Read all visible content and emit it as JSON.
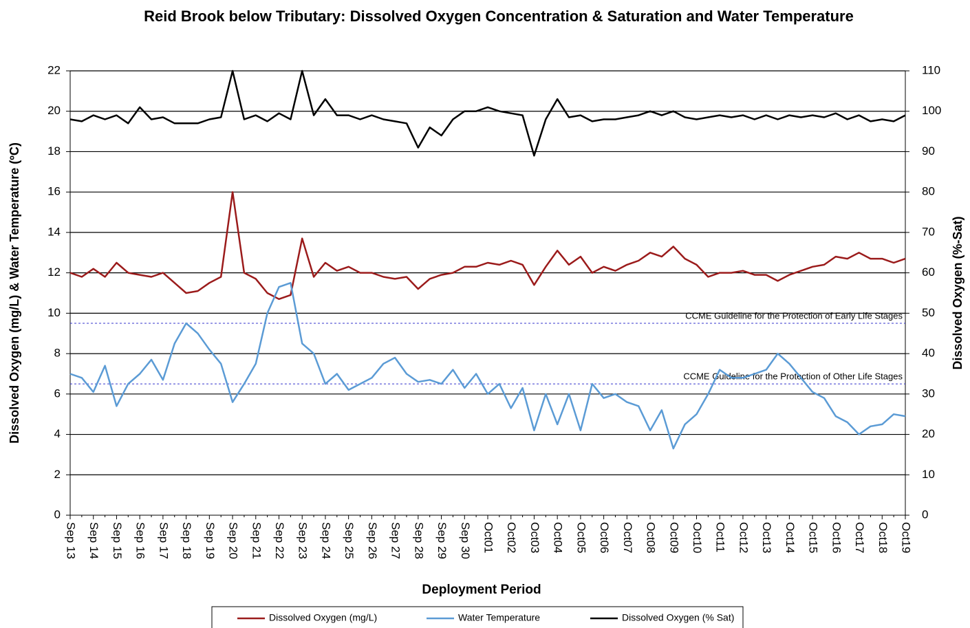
{
  "chart_data": {
    "type": "line",
    "title": "Reid Brook below Tributary: Dissolved Oxygen Concentration & Saturation and Water Temperature",
    "x_label": "Deployment Period",
    "y_label": "Dissolved  Oxygen (mg/L) & Water Temperature (ºC)",
    "y2_label": "Dissolved  Oxygen (%-Sat)",
    "categories": [
      "Sep 13",
      null,
      "Sep 14",
      null,
      "Sep 15",
      null,
      "Sep 16",
      null,
      "Sep 17",
      null,
      "Sep 18",
      null,
      "Sep 19",
      null,
      "Sep 20",
      null,
      "Sep 21",
      null,
      "Sep 22",
      null,
      "Sep 23",
      null,
      "Sep 24",
      null,
      "Sep 25",
      null,
      "Sep 26",
      null,
      "Sep 27",
      null,
      "Sep 28",
      null,
      "Sep 29",
      null,
      "Sep 30",
      null,
      "Oct01",
      null,
      "Oct02",
      null,
      "Oct03",
      null,
      "Oct04",
      null,
      "Oct05",
      null,
      "Oct06",
      null,
      "Oct07",
      null,
      "Oct08",
      null,
      "Oct09",
      null,
      "Oct10",
      null,
      "Oct11",
      null,
      "Oct12",
      null,
      "Oct13",
      null,
      "Oct14",
      null,
      "Oct15",
      null,
      "Oct16",
      null,
      "Oct17",
      null,
      "Oct18",
      null,
      "Oct19"
    ],
    "series": [
      {
        "name": "Dissolved Oxygen (mg/L)",
        "color": "#9b1b1b",
        "axis": "y",
        "values": [
          12.0,
          11.8,
          12.2,
          11.8,
          12.5,
          12.0,
          11.9,
          11.8,
          12.0,
          11.5,
          11.0,
          11.1,
          11.5,
          11.8,
          16.0,
          12.0,
          11.7,
          11.0,
          10.7,
          10.9,
          13.7,
          11.8,
          12.5,
          12.1,
          12.3,
          12.0,
          12.0,
          11.8,
          11.7,
          11.8,
          11.2,
          11.7,
          11.9,
          12.0,
          12.3,
          12.3,
          12.5,
          12.4,
          12.6,
          12.4,
          11.4,
          12.3,
          13.1,
          12.4,
          12.8,
          12.0,
          12.3,
          12.1,
          12.4,
          12.6,
          13.0,
          12.8,
          13.3,
          12.7,
          12.4,
          11.8,
          12.0,
          12.0,
          12.1,
          11.9,
          11.9,
          11.6,
          11.9,
          12.1,
          12.3,
          12.4,
          12.8,
          12.7,
          13.0,
          12.7,
          12.7,
          12.5,
          12.7
        ]
      },
      {
        "name": "Water Temperature",
        "color": "#5b9bd5",
        "axis": "y",
        "values": [
          7.0,
          6.8,
          6.1,
          7.4,
          5.4,
          6.5,
          7.0,
          7.7,
          6.7,
          8.5,
          9.5,
          9.0,
          8.2,
          7.5,
          5.6,
          6.5,
          7.5,
          10.0,
          11.3,
          11.5,
          8.5,
          8.0,
          6.5,
          7.0,
          6.2,
          6.5,
          6.8,
          7.5,
          7.8,
          7.0,
          6.6,
          6.7,
          6.5,
          7.2,
          6.3,
          7.0,
          6.0,
          6.5,
          5.3,
          6.3,
          4.2,
          6.0,
          4.5,
          6.0,
          4.2,
          6.5,
          5.8,
          6.0,
          5.6,
          5.4,
          4.2,
          5.2,
          3.3,
          4.5,
          5.0,
          6.0,
          7.2,
          6.8,
          6.8,
          7.0,
          7.2,
          8.0,
          7.5,
          6.8,
          6.1,
          5.8,
          4.9,
          4.6,
          4.0,
          4.4,
          4.5,
          5.0,
          4.9
        ]
      },
      {
        "name": "Dissolved Oxygen (% Sat)",
        "color": "#000000",
        "axis": "y2",
        "values": [
          98,
          97.5,
          99,
          98,
          99,
          97,
          101,
          98,
          98.5,
          97,
          97,
          97,
          98,
          98.5,
          110,
          98,
          99,
          97.5,
          99.5,
          98,
          110,
          99,
          103,
          99,
          99,
          98,
          99,
          98,
          97.5,
          97,
          91,
          96,
          94,
          98,
          100,
          100,
          101,
          100,
          99.5,
          99,
          89,
          98,
          103,
          98.5,
          99,
          97.5,
          98,
          98,
          98.5,
          99,
          100,
          99,
          100,
          98.5,
          98,
          98.5,
          99,
          98.5,
          99,
          98,
          99,
          98,
          99,
          98.5,
          99,
          98.5,
          99.5,
          98,
          99,
          97.5,
          98,
          97.5,
          99
        ]
      }
    ],
    "ylim": [
      0,
      22
    ],
    "yticks": [
      0,
      2,
      4,
      6,
      8,
      10,
      12,
      14,
      16,
      18,
      20,
      22
    ],
    "y2lim": [
      0,
      110
    ],
    "y2ticks": [
      0,
      10,
      20,
      30,
      40,
      50,
      60,
      70,
      80,
      90,
      100,
      110
    ],
    "grid": true,
    "annotations": [
      {
        "text": "CCME Guideline  for the Protection of Early Life Stages",
        "value": 9.5
      },
      {
        "text": "CCME Guideline  for the Protection of Other Life Stages",
        "value": 6.5
      }
    ],
    "legend": "bottom"
  }
}
